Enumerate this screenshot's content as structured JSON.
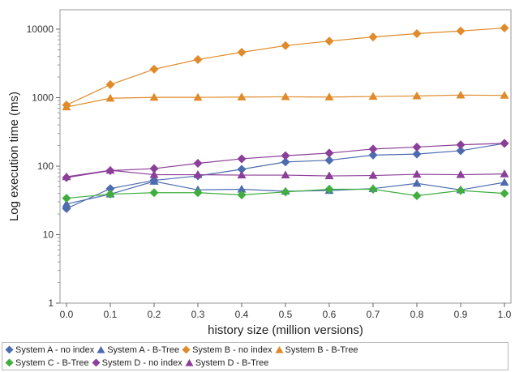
{
  "chart_data": {
    "type": "line",
    "title": "",
    "xlabel": "history size (million versions)",
    "ylabel": "Log execution time (ms)",
    "xlim": [
      0,
      1
    ],
    "ylim": [
      1,
      10000
    ],
    "yscale": "log",
    "grid": false,
    "legend_position": "bottom",
    "x_ticks": [
      "0.0",
      "0.1",
      "0.2",
      "0.3",
      "0.4",
      "0.5",
      "0.6",
      "0.7",
      "0.8",
      "0.9",
      "1.0"
    ],
    "y_ticks": [
      "1",
      "10",
      "100",
      "1000",
      "10000"
    ],
    "x": [
      0,
      0.1,
      0.2,
      0.3,
      0.4,
      0.5,
      0.6,
      0.7,
      0.8,
      0.9,
      1.0
    ],
    "series": [
      {
        "name": "System A - no index",
        "color": "#4d6cb0",
        "marker": "diamond",
        "values": [
          24,
          47,
          62,
          72,
          90,
          115,
          122,
          145,
          150,
          168,
          215
        ]
      },
      {
        "name": "System A - B-Tree",
        "color": "#4d6cb0",
        "marker": "triangle",
        "values": [
          28,
          39,
          60,
          45,
          46,
          43,
          44,
          47,
          56,
          45,
          58
        ]
      },
      {
        "name": "System B - no index",
        "color": "#e08a2a",
        "marker": "diamond",
        "values": [
          780,
          1550,
          2600,
          3600,
          4600,
          5750,
          6700,
          7700,
          8600,
          9400,
          10400
        ]
      },
      {
        "name": "System B  - B-Tree",
        "color": "#e08a2a",
        "marker": "triangle",
        "values": [
          730,
          980,
          1010,
          1010,
          1020,
          1030,
          1020,
          1040,
          1060,
          1090,
          1080
        ]
      },
      {
        "name": "System C - B-Tree",
        "color": "#3fae3f",
        "marker": "diamond",
        "values": [
          34,
          39,
          41,
          41,
          38,
          42,
          46,
          46,
          37,
          44,
          40
        ]
      },
      {
        "name": "System D - no index",
        "color": "#8c3f98",
        "marker": "diamond",
        "values": [
          68,
          86,
          92,
          110,
          128,
          142,
          155,
          178,
          190,
          205,
          215
        ]
      },
      {
        "name": "System D - B-Tree",
        "color": "#8c3f98",
        "marker": "triangle",
        "values": [
          70,
          87,
          75,
          75,
          74,
          74,
          72,
          73,
          76,
          75,
          77
        ]
      }
    ]
  },
  "legend": {
    "rows": [
      [
        0,
        1,
        2,
        3
      ],
      [
        4,
        5,
        6
      ]
    ]
  }
}
